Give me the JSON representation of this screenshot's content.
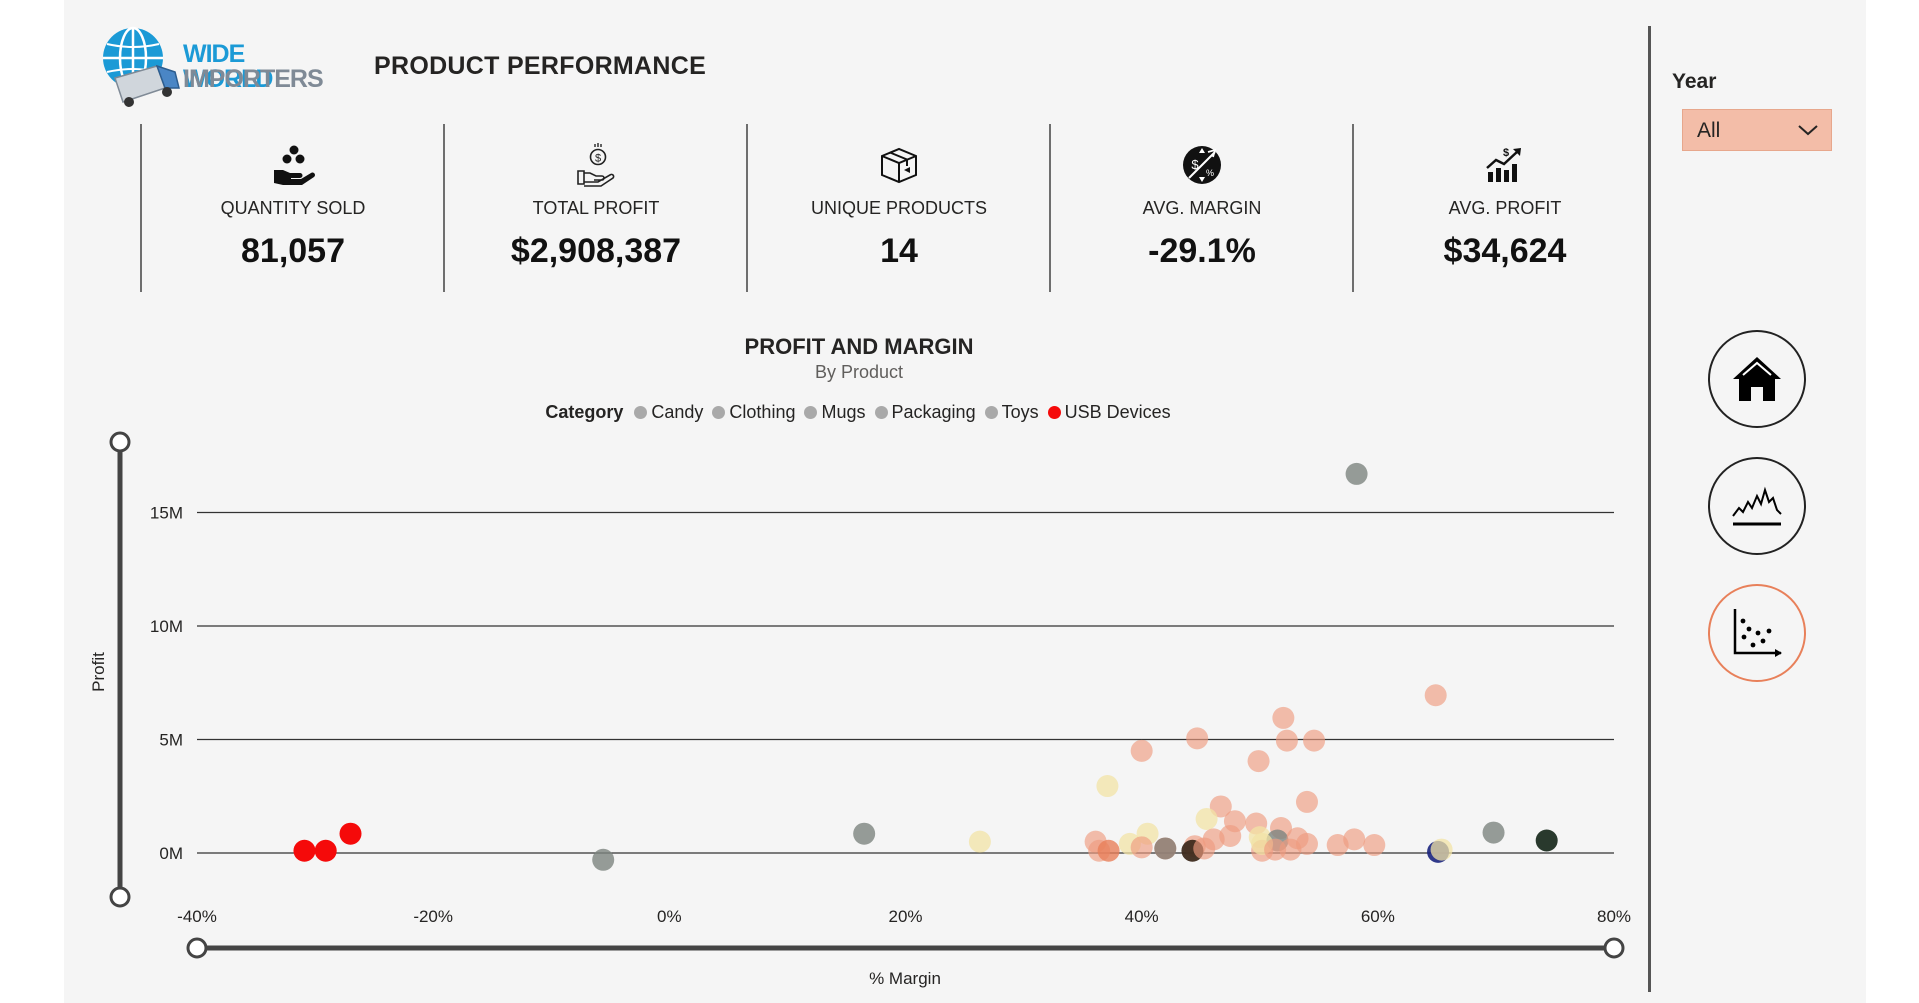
{
  "logo": {
    "line1": "WIDE WORLD",
    "line2": "IMPORTERS"
  },
  "page_title": "PRODUCT PERFORMANCE",
  "kpis": [
    {
      "label": "QUANTITY SOLD",
      "value": "81,057",
      "icon": "hand-coins-icon"
    },
    {
      "label": "TOTAL PROFIT",
      "value": "$2,908,387",
      "icon": "hand-dollar-icon"
    },
    {
      "label": "UNIQUE PRODUCTS",
      "value": "14",
      "icon": "box-icon"
    },
    {
      "label": "AVG. MARGIN",
      "value": "-29.1%",
      "icon": "margin-arrows-icon"
    },
    {
      "label": "AVG. PROFIT",
      "value": "$34,624",
      "icon": "profit-growth-icon"
    }
  ],
  "filter": {
    "label": "Year",
    "value": "All"
  },
  "nav": [
    {
      "name": "home",
      "icon": "home-icon"
    },
    {
      "name": "trend",
      "icon": "line-chart-icon"
    },
    {
      "name": "scatter",
      "icon": "scatter-chart-icon",
      "active": true
    }
  ],
  "colors": {
    "accent": "#e8805a",
    "selected": "#f3bda8",
    "usb": "#f50a0a",
    "grey": "#a9a9a9"
  },
  "chart_data": {
    "type": "scatter",
    "title": "PROFIT AND MARGIN",
    "subtitle": "By Product",
    "legend_title": "Category",
    "legend_position": "top-center",
    "categories": [
      "Candy",
      "Clothing",
      "Mugs",
      "Packaging",
      "Toys",
      "USB Devices"
    ],
    "legend_colors": [
      "#a9a9a9",
      "#a9a9a9",
      "#a9a9a9",
      "#a9a9a9",
      "#a9a9a9",
      "#f50a0a"
    ],
    "xlabel": "% Margin",
    "ylabel": "Profit",
    "xlim": [
      -40,
      80
    ],
    "ylim": [
      -2000000,
      18000000
    ],
    "xticks": [
      -40,
      -20,
      0,
      20,
      40,
      60,
      80
    ],
    "xtick_labels": [
      "-40%",
      "-20%",
      "0%",
      "20%",
      "40%",
      "60%",
      "80%"
    ],
    "yticks": [
      0,
      5000000,
      10000000,
      15000000
    ],
    "ytick_labels": [
      "0M",
      "5M",
      "10M",
      "15M"
    ],
    "grid": true,
    "points": [
      {
        "x": -30.9,
        "y": 100000,
        "color": "#f50a0a",
        "opacity": 1
      },
      {
        "x": -29.1,
        "y": 100000,
        "color": "#f50a0a",
        "opacity": 1
      },
      {
        "x": -27.0,
        "y": 850000,
        "color": "#f50a0a",
        "opacity": 1
      },
      {
        "x": -5.6,
        "y": -300000,
        "color": "#7d8580",
        "opacity": 0.8
      },
      {
        "x": 16.5,
        "y": 850000,
        "color": "#7d8580",
        "opacity": 0.8
      },
      {
        "x": 26.3,
        "y": 500000,
        "color": "#f2e3a6",
        "opacity": 0.75
      },
      {
        "x": 58.2,
        "y": 16700000,
        "color": "#7d8580",
        "opacity": 0.8
      },
      {
        "x": 64.9,
        "y": 6950000,
        "color": "#ee9b80",
        "opacity": 0.65
      },
      {
        "x": 52.0,
        "y": 5950000,
        "color": "#ee9b80",
        "opacity": 0.65
      },
      {
        "x": 44.7,
        "y": 5050000,
        "color": "#ee9b80",
        "opacity": 0.65
      },
      {
        "x": 52.3,
        "y": 4950000,
        "color": "#ee9b80",
        "opacity": 0.65
      },
      {
        "x": 54.6,
        "y": 4950000,
        "color": "#ee9b80",
        "opacity": 0.65
      },
      {
        "x": 40.0,
        "y": 4500000,
        "color": "#ee9b80",
        "opacity": 0.65
      },
      {
        "x": 49.9,
        "y": 4050000,
        "color": "#ee9b80",
        "opacity": 0.65
      },
      {
        "x": 37.1,
        "y": 2950000,
        "color": "#f2e3a6",
        "opacity": 0.75
      },
      {
        "x": 54.0,
        "y": 2250000,
        "color": "#ee9b80",
        "opacity": 0.65
      },
      {
        "x": 46.7,
        "y": 2050000,
        "color": "#ee9b80",
        "opacity": 0.65
      },
      {
        "x": 45.5,
        "y": 1500000,
        "color": "#f2e3a6",
        "opacity": 0.75
      },
      {
        "x": 47.9,
        "y": 1400000,
        "color": "#ee9b80",
        "opacity": 0.65
      },
      {
        "x": 49.7,
        "y": 1300000,
        "color": "#ee9b80",
        "opacity": 0.65
      },
      {
        "x": 51.8,
        "y": 1100000,
        "color": "#ee9b80",
        "opacity": 0.65
      },
      {
        "x": 40.5,
        "y": 850000,
        "color": "#f2e3a6",
        "opacity": 0.75
      },
      {
        "x": 47.5,
        "y": 750000,
        "color": "#ee9b80",
        "opacity": 0.65
      },
      {
        "x": 50.0,
        "y": 700000,
        "color": "#f2e3a6",
        "opacity": 0.75
      },
      {
        "x": 51.5,
        "y": 550000,
        "color": "#7d8580",
        "opacity": 0.8
      },
      {
        "x": 53.2,
        "y": 650000,
        "color": "#ee9b80",
        "opacity": 0.65
      },
      {
        "x": 58.0,
        "y": 600000,
        "color": "#ee9b80",
        "opacity": 0.65
      },
      {
        "x": 69.8,
        "y": 900000,
        "color": "#7d8580",
        "opacity": 0.8
      },
      {
        "x": 74.3,
        "y": 550000,
        "color": "#1e2e22",
        "opacity": 0.95
      },
      {
        "x": 36.1,
        "y": 500000,
        "color": "#ee9b80",
        "opacity": 0.65
      },
      {
        "x": 36.4,
        "y": 100000,
        "color": "#ee9b80",
        "opacity": 0.65
      },
      {
        "x": 37.2,
        "y": 100000,
        "color": "#e8805a",
        "opacity": 0.8
      },
      {
        "x": 39.0,
        "y": 400000,
        "color": "#f2e3a6",
        "opacity": 0.75
      },
      {
        "x": 40.0,
        "y": 250000,
        "color": "#ee9b80",
        "opacity": 0.65
      },
      {
        "x": 42.0,
        "y": 200000,
        "color": "#ee9b80",
        "opacity": 0.65
      },
      {
        "x": 42.0,
        "y": 200000,
        "color": "#8a7e74",
        "opacity": 0.85
      },
      {
        "x": 44.5,
        "y": 300000,
        "color": "#ee9b80",
        "opacity": 0.65
      },
      {
        "x": 44.3,
        "y": 100000,
        "color": "#3d2a1c",
        "opacity": 0.95
      },
      {
        "x": 45.3,
        "y": 200000,
        "color": "#ee9b80",
        "opacity": 0.65
      },
      {
        "x": 46.1,
        "y": 600000,
        "color": "#ee9b80",
        "opacity": 0.65
      },
      {
        "x": 50.2,
        "y": 100000,
        "color": "#ee9b80",
        "opacity": 0.65
      },
      {
        "x": 50.2,
        "y": 400000,
        "color": "#f2e3a6",
        "opacity": 0.75
      },
      {
        "x": 51.3,
        "y": 150000,
        "color": "#ee9b80",
        "opacity": 0.65
      },
      {
        "x": 52.6,
        "y": 150000,
        "color": "#ee9b80",
        "opacity": 0.65
      },
      {
        "x": 54.0,
        "y": 400000,
        "color": "#ee9b80",
        "opacity": 0.65
      },
      {
        "x": 56.6,
        "y": 350000,
        "color": "#ee9b80",
        "opacity": 0.65
      },
      {
        "x": 59.7,
        "y": 350000,
        "color": "#ee9b80",
        "opacity": 0.65
      },
      {
        "x": 65.1,
        "y": 50000,
        "color": "#1a237e",
        "opacity": 0.9
      },
      {
        "x": 65.4,
        "y": 150000,
        "color": "#f2e3a6",
        "opacity": 0.75
      }
    ]
  }
}
